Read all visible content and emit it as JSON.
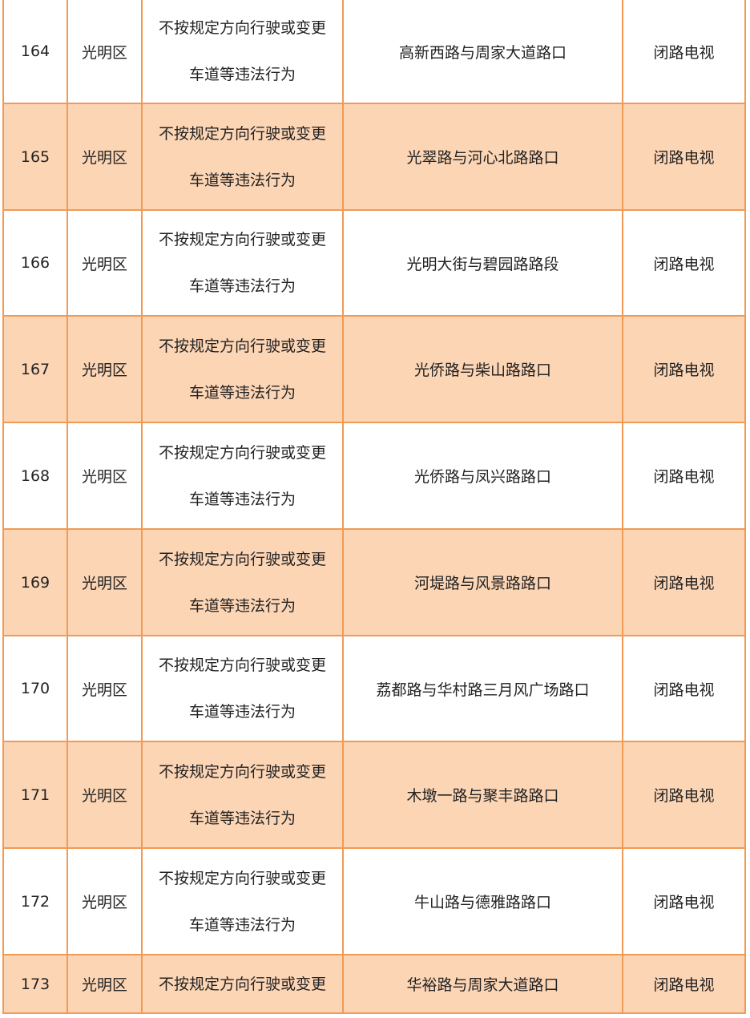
{
  "colors": {
    "border": "#f19a56",
    "shaded_row": "#fcd5b5"
  },
  "rows": [
    {
      "no": "164",
      "district": "光明区",
      "violation": [
        "不按规定方向行驶或变更",
        "车道等违法行为"
      ],
      "location": "高新西路与周家大道路口",
      "method": "闭路电视"
    },
    {
      "no": "165",
      "district": "光明区",
      "violation": [
        "不按规定方向行驶或变更",
        "车道等违法行为"
      ],
      "location": "光翠路与河心北路路口",
      "method": "闭路电视"
    },
    {
      "no": "166",
      "district": "光明区",
      "violation": [
        "不按规定方向行驶或变更",
        "车道等违法行为"
      ],
      "location": "光明大街与碧园路路段",
      "method": "闭路电视"
    },
    {
      "no": "167",
      "district": "光明区",
      "violation": [
        "不按规定方向行驶或变更",
        "车道等违法行为"
      ],
      "location": "光侨路与柴山路路口",
      "method": "闭路电视"
    },
    {
      "no": "168",
      "district": "光明区",
      "violation": [
        "不按规定方向行驶或变更",
        "车道等违法行为"
      ],
      "location": "光侨路与凤兴路路口",
      "method": "闭路电视"
    },
    {
      "no": "169",
      "district": "光明区",
      "violation": [
        "不按规定方向行驶或变更",
        "车道等违法行为"
      ],
      "location": "河堤路与风景路路口",
      "method": "闭路电视"
    },
    {
      "no": "170",
      "district": "光明区",
      "violation": [
        "不按规定方向行驶或变更",
        "车道等违法行为"
      ],
      "location": "荔都路与华村路三月风广场路口",
      "method": "闭路电视"
    },
    {
      "no": "171",
      "district": "光明区",
      "violation": [
        "不按规定方向行驶或变更",
        "车道等违法行为"
      ],
      "location": "木墩一路与聚丰路路口",
      "method": "闭路电视"
    },
    {
      "no": "172",
      "district": "光明区",
      "violation": [
        "不按规定方向行驶或变更",
        "车道等违法行为"
      ],
      "location": "牛山路与德雅路路口",
      "method": "闭路电视"
    },
    {
      "no": "173",
      "district": "光明区",
      "violation": [
        "不按规定方向行驶或变更"
      ],
      "location": "华裕路与周家大道路口",
      "method": "闭路电视"
    }
  ]
}
